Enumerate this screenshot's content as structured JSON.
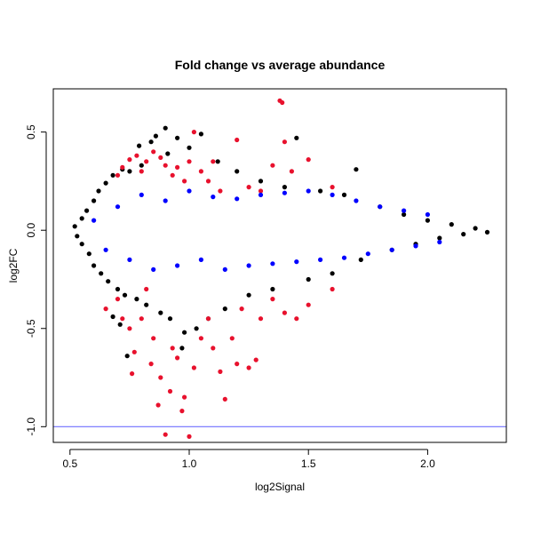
{
  "chart_data": {
    "type": "scatter",
    "title": "Fold change vs average abundance",
    "xlabel": "log2Signal",
    "ylabel": "log2FC",
    "xlim": [
      0.43,
      2.33
    ],
    "ylim": [
      -1.08,
      0.72
    ],
    "xticks": [
      0.5,
      1.0,
      1.5,
      2.0
    ],
    "xtick_labels": [
      "0.5",
      "1.0",
      "1.5",
      "2.0"
    ],
    "yticks": [
      -1.0,
      -0.5,
      0.0,
      0.5
    ],
    "ytick_labels": [
      "-1.0",
      "-0.5",
      "0.0",
      "0.5"
    ],
    "grid": false,
    "hline": {
      "y": -1.0,
      "color": "#7070ff"
    },
    "colors": {
      "black": "#000000",
      "red": "#e8112d",
      "blue": "#0000ff"
    },
    "series": [
      {
        "color": "#000000",
        "points": [
          [
            0.52,
            0.02
          ],
          [
            0.53,
            -0.03
          ],
          [
            0.55,
            0.06
          ],
          [
            0.55,
            -0.07
          ],
          [
            0.57,
            0.1
          ],
          [
            0.58,
            -0.12
          ],
          [
            0.6,
            0.15
          ],
          [
            0.6,
            -0.18
          ],
          [
            0.62,
            0.2
          ],
          [
            0.63,
            -0.22
          ],
          [
            0.65,
            0.24
          ],
          [
            0.66,
            -0.26
          ],
          [
            0.68,
            0.28
          ],
          [
            0.7,
            -0.3
          ],
          [
            0.72,
            0.31
          ],
          [
            0.73,
            -0.33
          ],
          [
            0.75,
            0.3
          ],
          [
            0.78,
            -0.35
          ],
          [
            0.8,
            0.33
          ],
          [
            0.82,
            -0.38
          ],
          [
            0.84,
            0.45
          ],
          [
            0.86,
            0.48
          ],
          [
            0.88,
            -0.42
          ],
          [
            0.9,
            0.52
          ],
          [
            0.92,
            -0.45
          ],
          [
            0.95,
            0.47
          ],
          [
            0.98,
            -0.52
          ],
          [
            1.0,
            0.42
          ],
          [
            1.03,
            -0.5
          ],
          [
            1.05,
            0.49
          ],
          [
            1.08,
            -0.45
          ],
          [
            1.12,
            0.35
          ],
          [
            1.15,
            -0.4
          ],
          [
            1.2,
            0.3
          ],
          [
            1.25,
            -0.33
          ],
          [
            1.3,
            0.25
          ],
          [
            1.35,
            -0.3
          ],
          [
            1.4,
            0.22
          ],
          [
            1.45,
            0.47
          ],
          [
            1.5,
            -0.25
          ],
          [
            1.55,
            0.2
          ],
          [
            1.6,
            -0.22
          ],
          [
            1.65,
            0.18
          ],
          [
            1.7,
            0.31
          ],
          [
            1.72,
            -0.15
          ],
          [
            1.8,
            0.12
          ],
          [
            1.85,
            -0.1
          ],
          [
            1.9,
            0.08
          ],
          [
            1.95,
            -0.07
          ],
          [
            2.0,
            0.05
          ],
          [
            2.05,
            -0.04
          ],
          [
            2.1,
            0.03
          ],
          [
            2.15,
            -0.02
          ],
          [
            2.2,
            0.01
          ],
          [
            2.25,
            -0.01
          ],
          [
            0.74,
            -0.64
          ],
          [
            0.68,
            -0.44
          ],
          [
            0.71,
            -0.48
          ],
          [
            0.97,
            -0.6
          ],
          [
            0.91,
            0.39
          ],
          [
            0.79,
            0.43
          ]
        ]
      },
      {
        "color": "#e8112d",
        "points": [
          [
            0.7,
            0.28
          ],
          [
            0.72,
            0.32
          ],
          [
            0.75,
            0.36
          ],
          [
            0.78,
            0.38
          ],
          [
            0.8,
            0.3
          ],
          [
            0.82,
            0.35
          ],
          [
            0.85,
            0.4
          ],
          [
            0.88,
            0.37
          ],
          [
            0.9,
            0.33
          ],
          [
            0.93,
            0.28
          ],
          [
            0.95,
            0.32
          ],
          [
            0.98,
            0.25
          ],
          [
            1.0,
            0.35
          ],
          [
            1.02,
            0.5
          ],
          [
            1.05,
            0.3
          ],
          [
            1.08,
            0.25
          ],
          [
            1.1,
            0.35
          ],
          [
            1.13,
            0.2
          ],
          [
            1.2,
            0.46
          ],
          [
            1.25,
            0.22
          ],
          [
            1.3,
            0.2
          ],
          [
            1.35,
            0.33
          ],
          [
            1.38,
            0.66
          ],
          [
            1.39,
            0.65
          ],
          [
            1.4,
            0.45
          ],
          [
            1.43,
            0.3
          ],
          [
            1.5,
            0.36
          ],
          [
            1.6,
            0.22
          ],
          [
            0.65,
            -0.4
          ],
          [
            0.7,
            -0.35
          ],
          [
            0.72,
            -0.45
          ],
          [
            0.75,
            -0.5
          ],
          [
            0.77,
            -0.62
          ],
          [
            0.8,
            -0.45
          ],
          [
            0.82,
            -0.3
          ],
          [
            0.85,
            -0.55
          ],
          [
            0.87,
            -0.89
          ],
          [
            0.88,
            -0.75
          ],
          [
            0.9,
            -1.04
          ],
          [
            0.92,
            -0.82
          ],
          [
            0.93,
            -0.6
          ],
          [
            0.95,
            -0.65
          ],
          [
            0.97,
            -0.92
          ],
          [
            0.98,
            -0.85
          ],
          [
            1.0,
            -1.05
          ],
          [
            1.02,
            -0.7
          ],
          [
            1.05,
            -0.55
          ],
          [
            1.08,
            -0.45
          ],
          [
            1.1,
            -0.6
          ],
          [
            1.13,
            -0.72
          ],
          [
            1.15,
            -0.86
          ],
          [
            1.18,
            -0.55
          ],
          [
            1.2,
            -0.68
          ],
          [
            1.22,
            -0.4
          ],
          [
            1.25,
            -0.7
          ],
          [
            1.28,
            -0.66
          ],
          [
            1.3,
            -0.45
          ],
          [
            1.35,
            -0.35
          ],
          [
            1.4,
            -0.42
          ],
          [
            1.45,
            -0.45
          ],
          [
            1.5,
            -0.38
          ],
          [
            1.6,
            -0.3
          ],
          [
            0.76,
            -0.73
          ],
          [
            0.84,
            -0.68
          ]
        ]
      },
      {
        "color": "#0000ff",
        "points": [
          [
            0.6,
            0.05
          ],
          [
            0.65,
            -0.1
          ],
          [
            0.7,
            0.12
          ],
          [
            0.75,
            -0.15
          ],
          [
            0.8,
            0.18
          ],
          [
            0.85,
            -0.2
          ],
          [
            0.9,
            0.15
          ],
          [
            0.95,
            -0.18
          ],
          [
            1.0,
            0.2
          ],
          [
            1.05,
            -0.15
          ],
          [
            1.1,
            0.17
          ],
          [
            1.15,
            -0.2
          ],
          [
            1.2,
            0.16
          ],
          [
            1.25,
            -0.18
          ],
          [
            1.3,
            0.18
          ],
          [
            1.35,
            -0.17
          ],
          [
            1.4,
            0.19
          ],
          [
            1.45,
            -0.16
          ],
          [
            1.5,
            0.2
          ],
          [
            1.55,
            -0.15
          ],
          [
            1.6,
            0.18
          ],
          [
            1.65,
            -0.14
          ],
          [
            1.7,
            0.15
          ],
          [
            1.75,
            -0.12
          ],
          [
            1.8,
            0.12
          ],
          [
            1.85,
            -0.1
          ],
          [
            1.9,
            0.1
          ],
          [
            1.95,
            -0.08
          ],
          [
            2.0,
            0.08
          ],
          [
            2.05,
            -0.06
          ]
        ]
      }
    ]
  }
}
